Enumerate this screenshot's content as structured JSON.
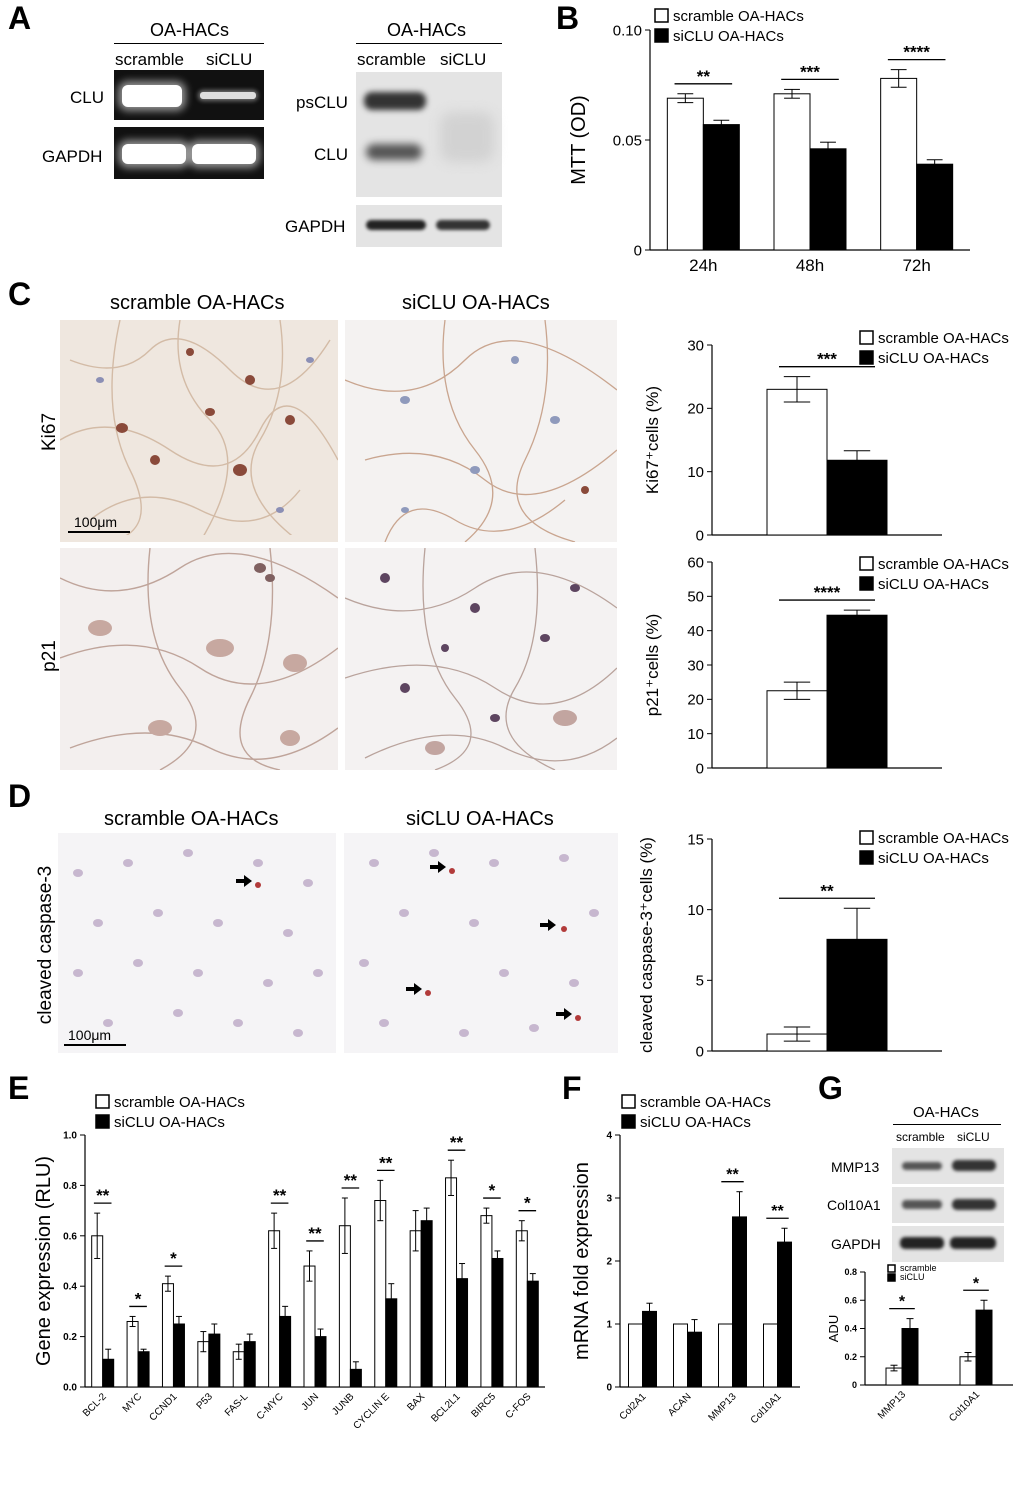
{
  "panel_letters": {
    "A": "A",
    "B": "B",
    "C": "C",
    "D": "D",
    "E": "E",
    "F": "F",
    "G": "G"
  },
  "panelA": {
    "rt_header": "OA-HACs",
    "rt_lanes": [
      "scramble",
      "siCLU"
    ],
    "rt_rows": [
      "CLU",
      "GAPDH"
    ],
    "wb_header": "OA-HACs",
    "wb_lanes": [
      "scramble",
      "siCLU"
    ],
    "wb_rows": [
      "psCLU",
      "CLU",
      "GAPDH"
    ]
  },
  "panelC": {
    "col_titles": [
      "scramble OA-HACs",
      "siCLU OA-HACs"
    ],
    "row_labels": [
      "Ki67",
      "p21"
    ],
    "scale_bar": "100μm"
  },
  "panelD": {
    "col_titles": [
      "scramble OA-HACs",
      "siCLU OA-HACs"
    ],
    "row_label": "cleaved caspase-3",
    "scale_bar": "100μm"
  },
  "panelG": {
    "blot_header": "OA-HACs",
    "blot_lanes": [
      "scramble",
      "siCLU"
    ],
    "blot_rows": [
      "MMP13",
      "Col10A1",
      "GAPDH"
    ]
  },
  "colors": {
    "open": "#ffffff",
    "filled": "#000000"
  },
  "chart_data": [
    {
      "id": "B",
      "type": "bar",
      "categories": [
        "24h",
        "48h",
        "72h"
      ],
      "series": [
        {
          "name": "scramble OA-HACs",
          "values": [
            0.069,
            0.071,
            0.078
          ],
          "errors": [
            0.002,
            0.002,
            0.004
          ]
        },
        {
          "name": "siCLU OA-HACs",
          "values": [
            0.057,
            0.046,
            0.039
          ],
          "errors": [
            0.002,
            0.003,
            0.002
          ]
        }
      ],
      "ylabel": "MTT (OD)",
      "ylim": [
        0,
        0.1
      ],
      "yticks": [
        "0",
        "0.05",
        "0.10"
      ],
      "ytick_values": [
        0,
        0.05,
        0.1
      ],
      "significance": [
        "**",
        "***",
        "****"
      ]
    },
    {
      "id": "C1",
      "type": "bar",
      "categories": [
        ""
      ],
      "series": [
        {
          "name": "scramble OA-HACs",
          "values": [
            23
          ],
          "errors": [
            2
          ]
        },
        {
          "name": "siCLU OA-HACs",
          "values": [
            11.8
          ],
          "errors": [
            1.5
          ]
        }
      ],
      "ylabel": "Ki67⁺cells (%)",
      "ylim": [
        0,
        30
      ],
      "yticks": [
        "0",
        "10",
        "20",
        "30"
      ],
      "ytick_values": [
        0,
        10,
        20,
        30
      ],
      "significance": [
        "***"
      ]
    },
    {
      "id": "C2",
      "type": "bar",
      "categories": [
        ""
      ],
      "series": [
        {
          "name": "scramble OA-HACs",
          "values": [
            22.5
          ],
          "errors": [
            2.5
          ]
        },
        {
          "name": "siCLU OA-HACs",
          "values": [
            44.5
          ],
          "errors": [
            1.5
          ]
        }
      ],
      "ylabel": "p21⁺cells (%)",
      "ylim": [
        0,
        60
      ],
      "yticks": [
        "0",
        "10",
        "20",
        "30",
        "40",
        "50",
        "60"
      ],
      "ytick_values": [
        0,
        10,
        20,
        30,
        40,
        50,
        60
      ],
      "significance": [
        "****"
      ]
    },
    {
      "id": "D",
      "type": "bar",
      "categories": [
        ""
      ],
      "series": [
        {
          "name": "scramble OA-HACs",
          "values": [
            1.2
          ],
          "errors": [
            0.5
          ]
        },
        {
          "name": "siCLU OA-HACs",
          "values": [
            7.9
          ],
          "errors": [
            2.2
          ]
        }
      ],
      "ylabel": "cleaved caspase-3⁺cells (%)",
      "ylim": [
        0,
        15
      ],
      "yticks": [
        "0",
        "5",
        "10",
        "15"
      ],
      "ytick_values": [
        0,
        5,
        10,
        15
      ],
      "significance": [
        "**"
      ]
    },
    {
      "id": "E",
      "type": "bar",
      "categories": [
        "BCL-2",
        "MYC",
        "CCND1",
        "P53",
        "FAS-L",
        "C-MYC",
        "JUN",
        "JUNB",
        "CYCLIN E",
        "BAX",
        "BCL2L1",
        "BIRC5",
        "C-FOS"
      ],
      "series": [
        {
          "name": "scramble OA-HACs",
          "values": [
            0.6,
            0.26,
            0.41,
            0.18,
            0.14,
            0.62,
            0.48,
            0.64,
            0.74,
            0.62,
            0.83,
            0.68,
            0.62
          ],
          "errors": [
            0.09,
            0.02,
            0.03,
            0.04,
            0.03,
            0.07,
            0.06,
            0.11,
            0.08,
            0.08,
            0.07,
            0.03,
            0.04
          ]
        },
        {
          "name": "siCLU OA-HACs",
          "values": [
            0.11,
            0.14,
            0.25,
            0.21,
            0.18,
            0.28,
            0.2,
            0.07,
            0.35,
            0.66,
            0.43,
            0.51,
            0.42
          ],
          "errors": [
            0.04,
            0.01,
            0.03,
            0.04,
            0.03,
            0.04,
            0.03,
            0.03,
            0.06,
            0.05,
            0.06,
            0.03,
            0.03
          ]
        }
      ],
      "ylabel": "Gene expression (RLU)",
      "ylim": [
        0,
        1.0
      ],
      "yticks": [
        "0.0",
        "0.2",
        "0.4",
        "0.6",
        "0.8",
        "1.0"
      ],
      "ytick_values": [
        0,
        0.2,
        0.4,
        0.6,
        0.8,
        1.0
      ],
      "significance": [
        "**",
        "*",
        "*",
        "",
        "",
        "**",
        "**",
        "**",
        "**",
        "",
        "**",
        "*",
        "*"
      ]
    },
    {
      "id": "F",
      "type": "bar",
      "categories": [
        "Col2A1",
        "ACAN",
        "MMP13",
        "Col10A1"
      ],
      "series": [
        {
          "name": "scramble OA-HACs",
          "values": [
            1,
            1,
            1,
            1
          ],
          "errors": [
            0,
            0,
            0,
            0
          ]
        },
        {
          "name": "siCLU OA-HACs",
          "values": [
            1.2,
            0.87,
            2.7,
            2.3
          ],
          "errors": [
            0.13,
            0.2,
            0.4,
            0.22
          ]
        }
      ],
      "ylabel": "mRNA fold expression",
      "ylim": [
        0,
        4
      ],
      "yticks": [
        "0",
        "1",
        "2",
        "3",
        "4"
      ],
      "ytick_values": [
        0,
        1,
        2,
        3,
        4
      ],
      "significance": [
        "",
        "",
        "**",
        "**"
      ]
    },
    {
      "id": "G",
      "type": "bar",
      "categories": [
        "MMP13",
        "Col10A1"
      ],
      "series": [
        {
          "name": "scramble",
          "values": [
            0.12,
            0.2
          ],
          "errors": [
            0.02,
            0.03
          ]
        },
        {
          "name": "siCLU",
          "values": [
            0.4,
            0.53
          ],
          "errors": [
            0.07,
            0.07
          ]
        }
      ],
      "ylabel": "ADU",
      "ylim": [
        0,
        0.8
      ],
      "yticks": [
        "0",
        "0.2",
        "0.4",
        "0.6",
        "0.8"
      ],
      "ytick_values": [
        0,
        0.2,
        0.4,
        0.6,
        0.8
      ],
      "significance": [
        "*",
        "*"
      ]
    }
  ]
}
